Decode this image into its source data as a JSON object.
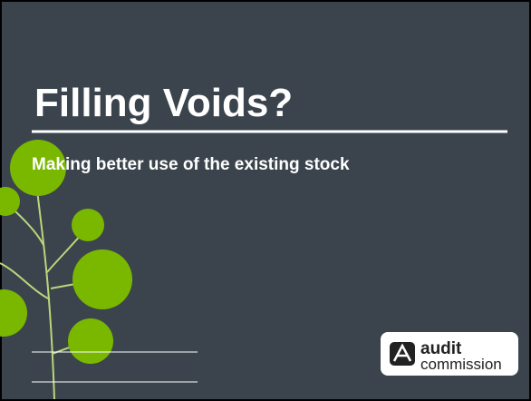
{
  "slide": {
    "title": "Filling Voids?",
    "subtitle": "Making better use of the existing stock",
    "logo": {
      "line1": "audit",
      "line2": "commission"
    }
  }
}
